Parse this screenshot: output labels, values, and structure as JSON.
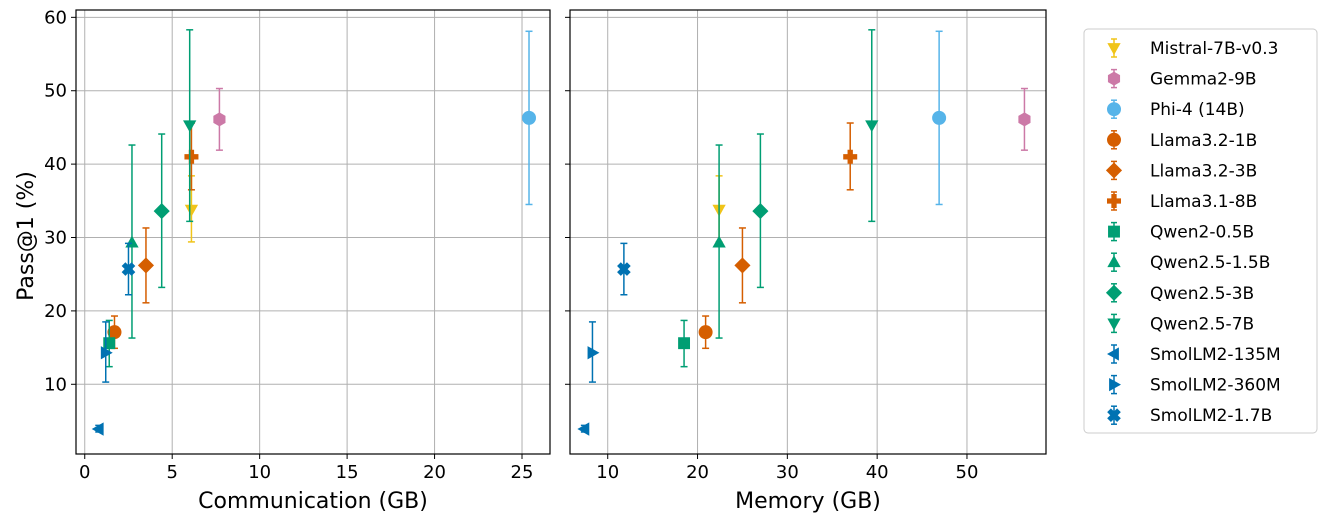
{
  "chart_data": {
    "type": "scatter",
    "ylabel": "Pass@1 (%)",
    "ylim": [
      0.5,
      61
    ],
    "yticks": [
      10,
      20,
      30,
      40,
      50,
      60
    ],
    "grid": true,
    "legend_position": "right, outside",
    "panels": [
      {
        "id": "communication",
        "xlabel": "Communication (GB)",
        "xlim": [
          -0.5,
          26.6
        ],
        "xticks": [
          0,
          5,
          10,
          15,
          20,
          25
        ],
        "points": [
          {
            "model": "Mistral-7B-v0.3",
            "x": 6.1,
            "y": 33.8,
            "err": [
              29.4,
              38.4
            ]
          },
          {
            "model": "Gemma2-9B",
            "x": 7.7,
            "y": 46.1,
            "err": [
              41.9,
              50.3
            ]
          },
          {
            "model": "Phi-4 (14B)",
            "x": 25.4,
            "y": 46.3,
            "err": [
              34.5,
              58.1
            ]
          },
          {
            "model": "Llama3.2-1B",
            "x": 1.7,
            "y": 17.1,
            "err": [
              14.9,
              19.3
            ]
          },
          {
            "model": "Llama3.2-3B",
            "x": 3.5,
            "y": 26.2,
            "err": [
              21.1,
              31.3
            ]
          },
          {
            "model": "Llama3.1-8B",
            "x": 6.1,
            "y": 41.0,
            "err": [
              36.5,
              45.6
            ]
          },
          {
            "model": "Qwen2-0.5B",
            "x": 1.4,
            "y": 15.6,
            "err": [
              12.4,
              18.7
            ]
          },
          {
            "model": "Qwen2.5-1.5B",
            "x": 2.7,
            "y": 29.3,
            "err": [
              16.3,
              42.6
            ]
          },
          {
            "model": "Qwen2.5-3B",
            "x": 4.4,
            "y": 33.6,
            "err": [
              23.2,
              44.1
            ]
          },
          {
            "model": "Qwen2.5-7B",
            "x": 6.0,
            "y": 45.3,
            "err": [
              32.2,
              58.3
            ]
          },
          {
            "model": "SmolLM2-135M",
            "x": 0.8,
            "y": 3.9,
            "err": [
              3.5,
              4.4
            ]
          },
          {
            "model": "SmolLM2-360M",
            "x": 1.2,
            "y": 14.3,
            "err": [
              10.3,
              18.5
            ]
          },
          {
            "model": "SmolLM2-1.7B",
            "x": 2.5,
            "y": 25.7,
            "err": [
              22.2,
              29.2
            ]
          }
        ]
      },
      {
        "id": "memory",
        "xlabel": "Memory (GB)",
        "xlim": [
          5.8,
          58.8
        ],
        "xticks": [
          10,
          20,
          30,
          40,
          50
        ],
        "points": [
          {
            "model": "Mistral-7B-v0.3",
            "x": 22.4,
            "y": 33.8,
            "err": [
              29.4,
              38.4
            ]
          },
          {
            "model": "Gemma2-9B",
            "x": 56.4,
            "y": 46.1,
            "err": [
              41.9,
              50.3
            ]
          },
          {
            "model": "Phi-4 (14B)",
            "x": 46.9,
            "y": 46.3,
            "err": [
              34.5,
              58.1
            ]
          },
          {
            "model": "Llama3.2-1B",
            "x": 20.9,
            "y": 17.1,
            "err": [
              14.9,
              19.3
            ]
          },
          {
            "model": "Llama3.2-3B",
            "x": 25.0,
            "y": 26.2,
            "err": [
              21.1,
              31.3
            ]
          },
          {
            "model": "Llama3.1-8B",
            "x": 37.0,
            "y": 41.0,
            "err": [
              36.5,
              45.6
            ]
          },
          {
            "model": "Qwen2-0.5B",
            "x": 18.5,
            "y": 15.6,
            "err": [
              12.4,
              18.7
            ]
          },
          {
            "model": "Qwen2.5-1.5B",
            "x": 22.4,
            "y": 29.3,
            "err": [
              16.3,
              42.6
            ]
          },
          {
            "model": "Qwen2.5-3B",
            "x": 27.0,
            "y": 33.6,
            "err": [
              23.2,
              44.1
            ]
          },
          {
            "model": "Qwen2.5-7B",
            "x": 39.4,
            "y": 45.3,
            "err": [
              32.2,
              58.3
            ]
          },
          {
            "model": "SmolLM2-135M",
            "x": 7.4,
            "y": 3.9,
            "err": [
              3.5,
              4.4
            ]
          },
          {
            "model": "SmolLM2-360M",
            "x": 8.3,
            "y": 14.3,
            "err": [
              10.3,
              18.5
            ]
          },
          {
            "model": "SmolLM2-1.7B",
            "x": 11.8,
            "y": 25.7,
            "err": [
              22.2,
              29.2
            ]
          }
        ]
      }
    ],
    "legend": [
      {
        "name": "Mistral-7B-v0.3",
        "marker": "triangle-down",
        "color": "#F0C419"
      },
      {
        "name": "Gemma2-9B",
        "marker": "hexagon",
        "color": "#CC79A7"
      },
      {
        "name": "Phi-4 (14B)",
        "marker": "circle",
        "color": "#56B4E9"
      },
      {
        "name": "Llama3.2-1B",
        "marker": "circle",
        "color": "#D55E00"
      },
      {
        "name": "Llama3.2-3B",
        "marker": "diamond",
        "color": "#D55E00"
      },
      {
        "name": "Llama3.1-8B",
        "marker": "plus-filled",
        "color": "#D55E00"
      },
      {
        "name": "Qwen2-0.5B",
        "marker": "square",
        "color": "#009E73"
      },
      {
        "name": "Qwen2.5-1.5B",
        "marker": "triangle-up",
        "color": "#009E73"
      },
      {
        "name": "Qwen2.5-3B",
        "marker": "diamond",
        "color": "#009E73"
      },
      {
        "name": "Qwen2.5-7B",
        "marker": "triangle-down",
        "color": "#009E73"
      },
      {
        "name": "SmolLM2-135M",
        "marker": "triangle-left",
        "color": "#0072B2"
      },
      {
        "name": "SmolLM2-360M",
        "marker": "triangle-right",
        "color": "#0072B2"
      },
      {
        "name": "SmolLM2-1.7B",
        "marker": "x-filled",
        "color": "#0072B2"
      }
    ]
  }
}
